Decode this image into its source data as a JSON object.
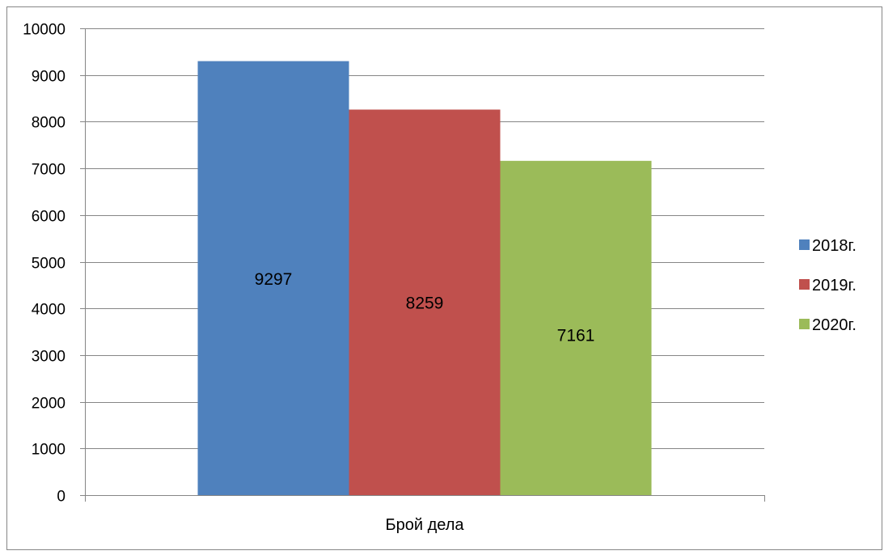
{
  "chart_data": {
    "type": "bar",
    "categories": [
      "Брой дела"
    ],
    "series": [
      {
        "name": "2018г.",
        "values": [
          9297
        ],
        "color": "#4F81BD"
      },
      {
        "name": "2019г.",
        "values": [
          8259
        ],
        "color": "#C0504D"
      },
      {
        "name": "2020г.",
        "values": [
          7161
        ],
        "color": "#9BBB59"
      }
    ],
    "data_labels": [
      "9297",
      "8259",
      "7161"
    ],
    "y_ticks": [
      "0",
      "1000",
      "2000",
      "3000",
      "4000",
      "5000",
      "6000",
      "7000",
      "8000",
      "9000",
      "10000"
    ],
    "ylim": [
      0,
      10000
    ],
    "grid": true,
    "legend_position": "right",
    "gridline_color": "#868686",
    "axis_color": "#868686",
    "border_color": "#868686"
  }
}
